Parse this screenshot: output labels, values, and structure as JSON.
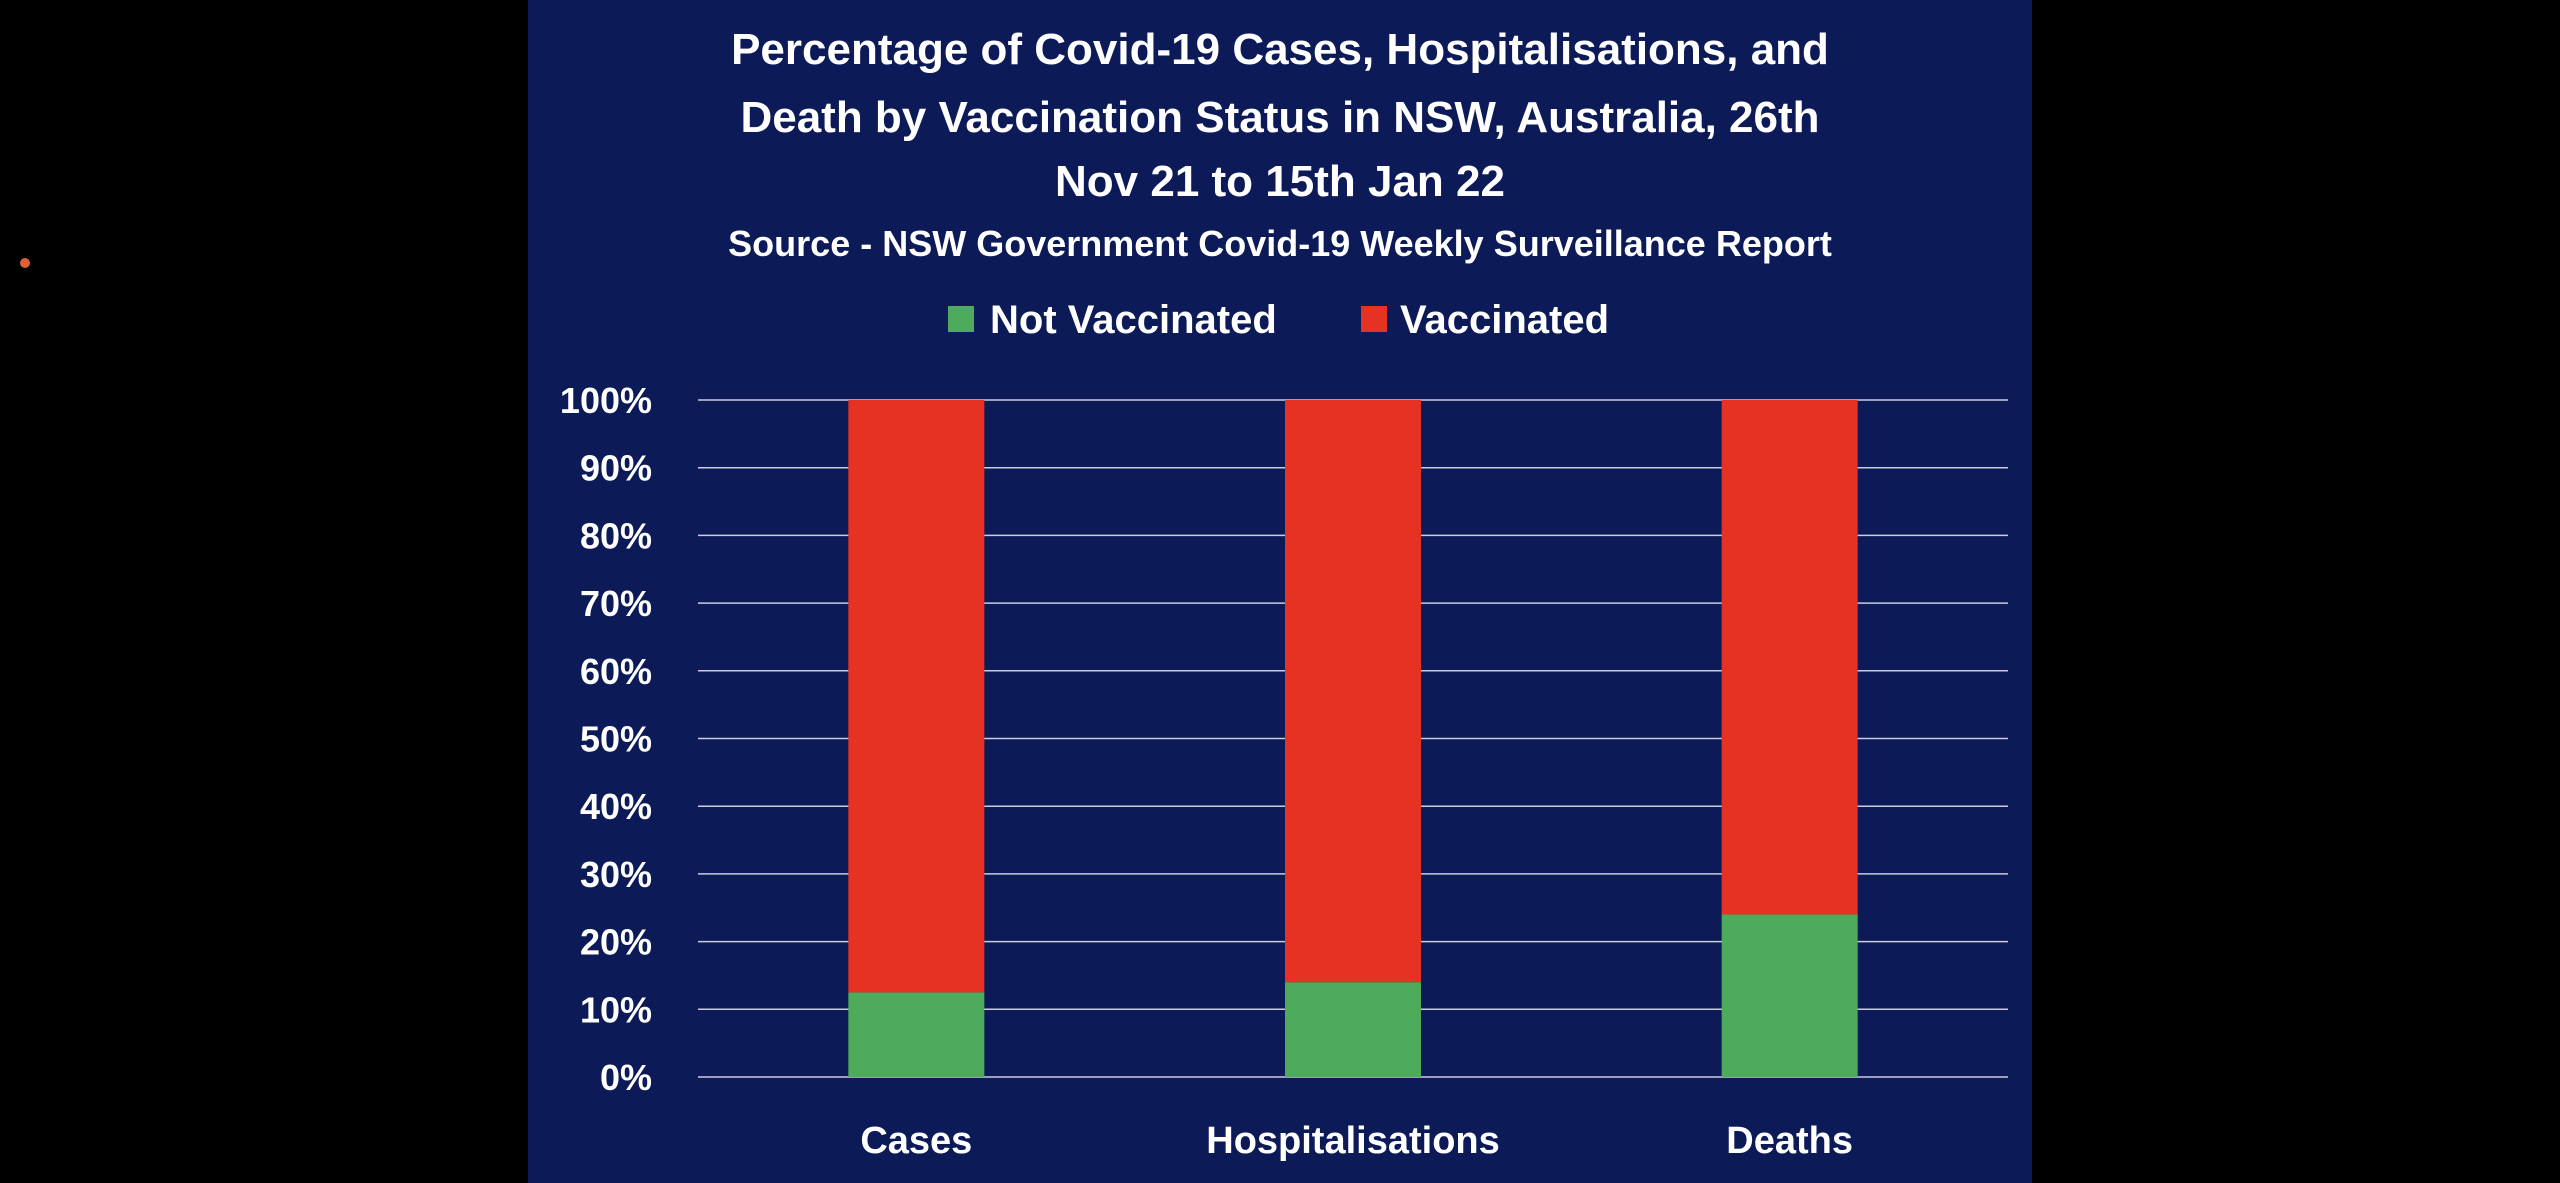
{
  "colors": {
    "page_background": "#000000",
    "panel_background": "#0c1a57",
    "gridline": "#c9cdde",
    "text": "#ffffff",
    "slide_dot": "#e0603a"
  },
  "chart_data": {
    "type": "bar",
    "stacked": true,
    "title_lines": [
      "Percentage of Covid-19 Cases, Hospitalisations, and",
      "Death by Vaccination Status in NSW, Australia, 26th",
      "Nov 21 to 15th Jan 22"
    ],
    "subtitle": "Source - NSW Government Covid-19 Weekly Surveillance Report",
    "categories": [
      "Cases",
      "Hospitalisations",
      "Deaths"
    ],
    "series": [
      {
        "name": "Not Vaccinated",
        "color": "#4fab5c",
        "values": [
          12.5,
          14,
          24
        ]
      },
      {
        "name": "Vaccinated",
        "color": "#e63223",
        "values": [
          87.5,
          86,
          76
        ]
      }
    ],
    "y_ticks": [
      "0%",
      "10%",
      "20%",
      "30%",
      "40%",
      "50%",
      "60%",
      "70%",
      "80%",
      "90%",
      "100%"
    ],
    "ylim": [
      0,
      100
    ],
    "grid": true,
    "legend_position": "top-center"
  }
}
